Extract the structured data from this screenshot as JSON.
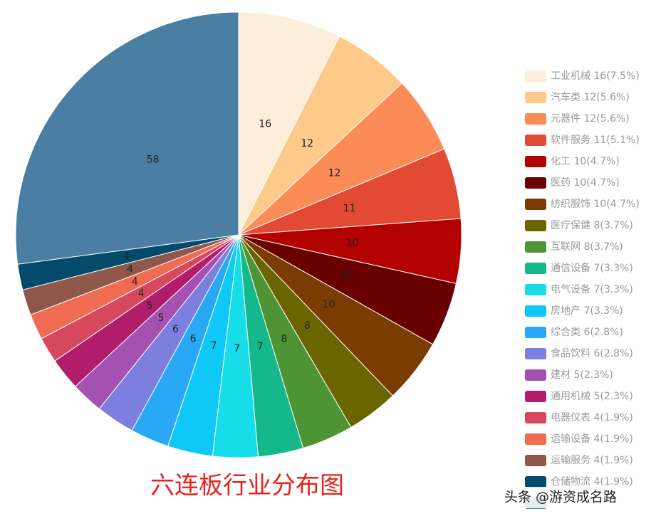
{
  "chart_data": {
    "type": "pie",
    "title": "六连板行业分布图",
    "watermark": "头条 @游资成名路",
    "categories": [
      "工业机械 16(7.5%)",
      "汽车类 12(5.6%)",
      "元器件 12(5.6%)",
      "软件服务 11(5.1%)",
      "化工 10(4.7%)",
      "医药 10(4.7%)",
      "纺织服饰 10(4.7%)",
      "医疗保健 8(3.7%)",
      "互联网 8(3.7%)",
      "通信设备 7(3.3%)",
      "电气设备 7(3.3%)",
      "房地产 7(3.3%)",
      "综合类 6(2.8%)",
      "食品饮料 6(2.8%)",
      "建材 5(2.3%)",
      "通用机械 5(2.3%)",
      "电器仪表 4(1.9%)",
      "运输设备 4(1.9%)",
      "运输服务 4(1.9%)",
      "仓储物流 4(1.9%)",
      null
    ],
    "values": [
      16,
      12,
      12,
      11,
      10,
      10,
      10,
      8,
      8,
      7,
      7,
      7,
      6,
      6,
      5,
      5,
      4,
      4,
      4,
      4,
      58
    ],
    "colors": [
      "#fdeedb",
      "#fdca8a",
      "#fb8c58",
      "#e34a33",
      "#b30000",
      "#680000",
      "#7a3c00",
      "#6b6500",
      "#4f9434",
      "#14b88a",
      "#16dde8",
      "#10c8f5",
      "#28a8f5",
      "#7d7fdf",
      "#a551b2",
      "#b01e6b",
      "#d5485e",
      "#ef6b52",
      "#8f574a",
      "#034a6b",
      "#4a7fa3"
    ]
  }
}
